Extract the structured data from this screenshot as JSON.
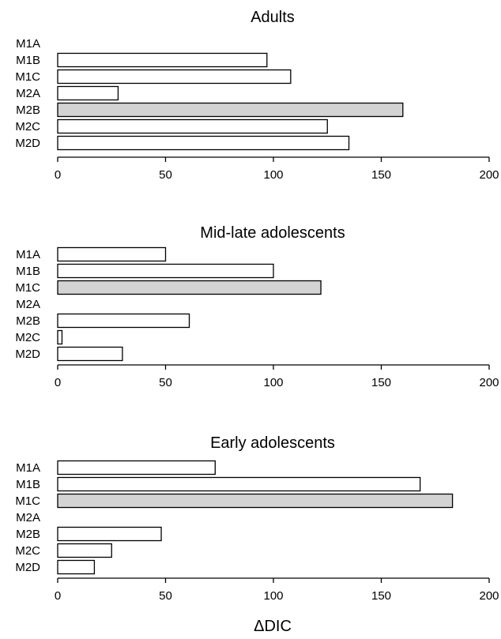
{
  "colors": {
    "highlight": "#d3d3d3",
    "default": "#ffffff",
    "stroke": "#000000"
  },
  "chart_data": {
    "type": "bar",
    "orientation": "horizontal",
    "xlabel": "ΔDIC",
    "xlim": [
      0,
      200
    ],
    "xticks": [
      0,
      50,
      100,
      150,
      200
    ],
    "panels": [
      {
        "title": "Adults",
        "categories": [
          "M1A",
          "M1B",
          "M1C",
          "M2A",
          "M2B",
          "M2C",
          "M2D"
        ],
        "values": [
          0,
          97,
          108,
          28,
          160,
          125,
          135
        ],
        "highlighted": "M2B"
      },
      {
        "title": "Mid-late adolescents",
        "categories": [
          "M1A",
          "M1B",
          "M1C",
          "M2A",
          "M2B",
          "M2C",
          "M2D"
        ],
        "values": [
          50,
          100,
          122,
          0,
          61,
          2,
          30
        ],
        "highlighted": "M1C"
      },
      {
        "title": "Early adolescents",
        "categories": [
          "M1A",
          "M1B",
          "M1C",
          "M2A",
          "M2B",
          "M2C",
          "M2D"
        ],
        "values": [
          73,
          168,
          183,
          0,
          48,
          25,
          17
        ],
        "highlighted": "M1C"
      }
    ]
  }
}
